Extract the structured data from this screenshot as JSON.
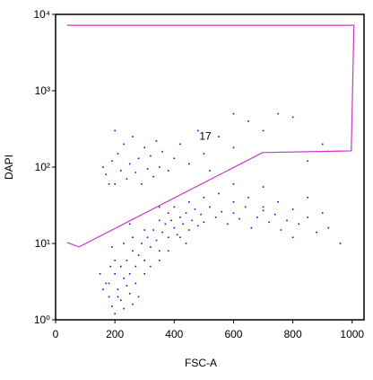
{
  "chart_data": {
    "type": "scatter",
    "x_label": "FSC-A",
    "y_label": "DAPI",
    "xlim": [
      0,
      1040
    ],
    "xticks": [
      0,
      200,
      400,
      600,
      800,
      1000
    ],
    "ylim": [
      1,
      10000
    ],
    "log_y": true,
    "yticks": [
      {
        "value": 1,
        "label": "10⁰"
      },
      {
        "value": 10,
        "label": "10¹"
      },
      {
        "value": 100,
        "label": "10²"
      },
      {
        "value": 1000,
        "label": "10³"
      },
      {
        "value": 10000,
        "label": "10⁴"
      }
    ],
    "color": "#1010d0",
    "x": [
      180,
      200,
      210,
      220,
      230,
      240,
      250,
      260,
      270,
      280,
      290,
      300,
      310,
      320,
      330,
      340,
      350,
      360,
      370,
      380,
      390,
      400,
      410,
      420,
      430,
      440,
      450,
      460,
      470,
      480,
      490,
      500,
      520,
      540,
      560,
      580,
      600,
      620,
      640,
      660,
      680,
      700,
      720,
      740,
      760,
      780,
      800,
      820,
      850,
      880,
      920,
      960,
      190,
      200,
      210,
      220,
      230,
      250,
      180,
      170,
      160,
      260,
      150,
      240,
      270,
      300,
      320,
      350,
      280,
      200,
      190,
      185,
      350,
      380,
      400,
      420,
      440,
      380,
      300,
      260,
      250,
      230,
      350,
      450,
      500,
      550,
      600,
      650,
      700,
      750,
      800,
      900,
      600,
      700,
      850,
      170,
      190,
      200,
      210,
      220,
      230,
      240,
      250,
      260,
      270,
      280,
      290,
      300,
      310,
      320,
      330,
      340,
      350,
      360,
      380,
      400,
      420,
      450,
      480,
      500,
      550,
      600,
      650,
      700,
      750,
      800,
      850,
      900,
      180,
      160,
      200,
      600,
      520
    ],
    "y": [
      3,
      4,
      2.5,
      5,
      3.5,
      6,
      4,
      8,
      5,
      7,
      10,
      6,
      12,
      9,
      15,
      11,
      8,
      14,
      18,
      12,
      20,
      16,
      13,
      22,
      18,
      25,
      15,
      20,
      28,
      17,
      24,
      19,
      30,
      22,
      26,
      18,
      25,
      21,
      30,
      16,
      22,
      27,
      19,
      24,
      15,
      20,
      12,
      18,
      22,
      14,
      16,
      10,
      1.5,
      1.2,
      2,
      1.8,
      1.4,
      2.2,
      2,
      3,
      2.5,
      1.6,
      4,
      2.8,
      3,
      4,
      5,
      6,
      2,
      6,
      9,
      5,
      20,
      25,
      30,
      12,
      10,
      8,
      15,
      12,
      18,
      10,
      30,
      35,
      40,
      45,
      35,
      40,
      30,
      35,
      28,
      25,
      60,
      55,
      40,
      80,
      120,
      60,
      150,
      90,
      200,
      70,
      110,
      250,
      85,
      130,
      60,
      180,
      95,
      140,
      75,
      220,
      100,
      160,
      90,
      130,
      200,
      110,
      300,
      150,
      250,
      180,
      400,
      300,
      500,
      450,
      120,
      200,
      60,
      100,
      300,
      500,
      90
    ],
    "gate": {
      "label": "17",
      "label_x": 505,
      "label_y": 230,
      "color": "#cc33cc",
      "x": [
        39,
        1006,
        997,
        698,
        79,
        39
      ],
      "y": [
        7200,
        7200,
        163,
        155,
        9,
        10.3
      ]
    }
  }
}
